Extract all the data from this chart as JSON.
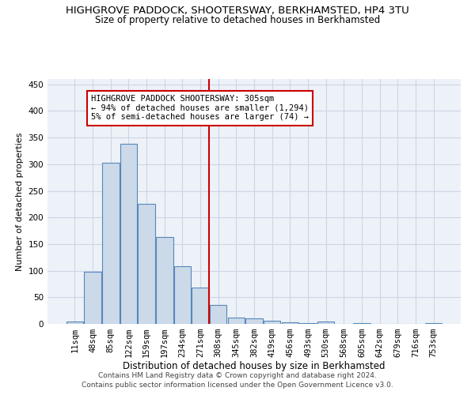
{
  "title": "HIGHGROVE PADDOCK, SHOOTERSWAY, BERKHAMSTED, HP4 3TU",
  "subtitle": "Size of property relative to detached houses in Berkhamsted",
  "xlabel": "Distribution of detached houses by size in Berkhamsted",
  "ylabel": "Number of detached properties",
  "bar_values": [
    5,
    98,
    303,
    338,
    225,
    163,
    108,
    68,
    35,
    12,
    10,
    6,
    3,
    2,
    4,
    0,
    2,
    0,
    0,
    0,
    2
  ],
  "bar_labels": [
    "11sqm",
    "48sqm",
    "85sqm",
    "122sqm",
    "159sqm",
    "197sqm",
    "234sqm",
    "271sqm",
    "308sqm",
    "345sqm",
    "382sqm",
    "419sqm",
    "456sqm",
    "493sqm",
    "530sqm",
    "568sqm",
    "605sqm",
    "642sqm",
    "679sqm",
    "716sqm",
    "753sqm"
  ],
  "bar_color": "#ccd9e8",
  "bar_edge_color": "#5588bb",
  "bar_linewidth": 0.8,
  "ylim": [
    0,
    460
  ],
  "yticks": [
    0,
    50,
    100,
    150,
    200,
    250,
    300,
    350,
    400,
    450
  ],
  "property_line_x": 7.5,
  "property_line_color": "#cc0000",
  "annotation_text": "HIGHGROVE PADDOCK SHOOTERSWAY: 305sqm\n← 94% of detached houses are smaller (1,294)\n5% of semi-detached houses are larger (74) →",
  "annotation_box_color": "#ffffff",
  "annotation_box_edge": "#cc0000",
  "grid_color": "#ccd5e5",
  "background_color": "#edf2f8",
  "footer": "Contains HM Land Registry data © Crown copyright and database right 2024.\nContains public sector information licensed under the Open Government Licence v3.0.",
  "title_fontsize": 9.5,
  "subtitle_fontsize": 8.5,
  "xlabel_fontsize": 8.5,
  "ylabel_fontsize": 8.0,
  "tick_fontsize": 7.5,
  "ann_fontsize": 7.5,
  "footer_fontsize": 6.5
}
